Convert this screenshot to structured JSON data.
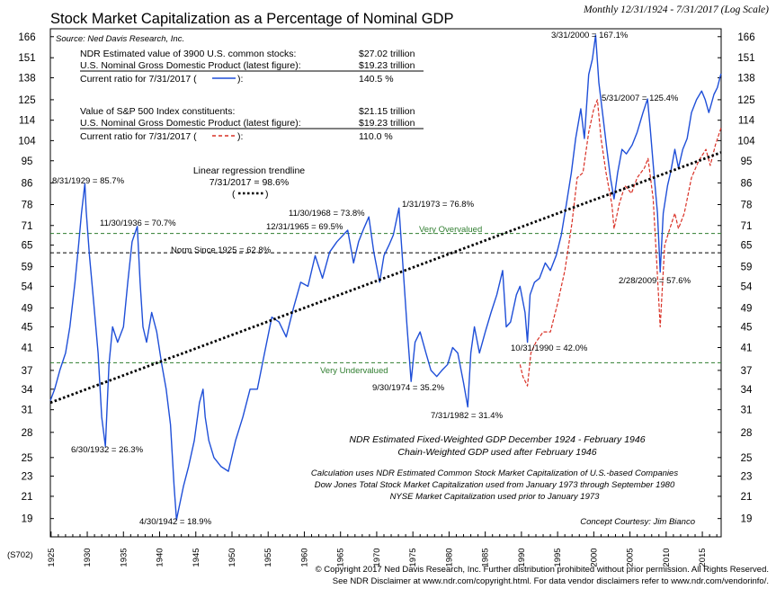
{
  "header": {
    "title": "Stock Market Capitalization as a Percentage of Nominal GDP",
    "subtitle": "Monthly 12/31/1924 - 7/31/2017 (Log Scale)",
    "source": "Source: Ned Davis Research, Inc.",
    "chart_code": "(S702)"
  },
  "info": {
    "ndr_label": "NDR Estimated value of 3900 U.S. common stocks:",
    "ndr_value": "$27.02 trillion",
    "gdp_label_1": "U.S. Nominal Gross Domestic Product (latest figure):",
    "gdp_value_1": "$19.23 trillion",
    "ratio_label_1a": "Current ratio for 7/31/2017 (",
    "ratio_label_1b": "):",
    "ratio_value_1": "140.5 %",
    "sp_label": "Value of S&P 500 Index constituents:",
    "sp_value": "$21.15 trillion",
    "gdp_label_2": "U.S. Nominal Gross Domestic Product (latest figure):",
    "gdp_value_2": "$19.23 trillion",
    "ratio_label_2a": "Current ratio for 7/31/2017 (",
    "ratio_label_2b": "):",
    "ratio_value_2": "110.0 %",
    "trend_line1": "Linear regression trendline",
    "trend_line2": "7/31/2017 = 98.6%",
    "trend_line3a": "(",
    "trend_line3b": ")"
  },
  "notes": {
    "gdp_1": "NDR Estimated Fixed-Weighted GDP December 1924 - February 1946",
    "gdp_2": "Chain-Weighted GDP used after February 1946",
    "calc_1": "Calculation uses NDR Estimated Common Stock Market Capitalization of U.S.-based Companies",
    "calc_2": "Dow Jones Total Stock Market Capitalization used from January 1973 through September 1980",
    "calc_3": "NYSE Market Capitalization used prior to January 1973",
    "courtesy": "Concept Courtesy: Jim Bianco"
  },
  "footer": {
    "line1": "© Copyright 2017 Ned Davis Research, Inc.  Further distribution prohibited without prior permission.  All Rights Reserved.",
    "line2": "See NDR Disclaimer at www.ndr.com/copyright.html.  For data vendor disclaimers refer to www.ndr.com/vendorinfo/."
  },
  "colors": {
    "ndr_series": "#1f4fd8",
    "sp_series": "#d93025",
    "trend": "#000000",
    "zone_lines": "#2f7d2f",
    "norm_line": "#000000"
  },
  "chart_data": {
    "type": "line",
    "y_scale": "log",
    "ylim": [
      17.5,
      172
    ],
    "xlim": [
      1924.9,
      2017.6
    ],
    "y_ticks": [
      19,
      21,
      23,
      25,
      28,
      31,
      34,
      37,
      41,
      45,
      49,
      54,
      59,
      65,
      71,
      78,
      86,
      95,
      104,
      114,
      125,
      138,
      151,
      166
    ],
    "x_ticks": [
      1925,
      1930,
      1935,
      1940,
      1945,
      1950,
      1955,
      1960,
      1965,
      1970,
      1975,
      1980,
      1985,
      1990,
      1995,
      2000,
      2005,
      2010,
      2015
    ],
    "series": [
      {
        "name": "NDR Estimated value of 3900 U.S. common stocks / GDP",
        "style": "solid",
        "x": [
          1924.9,
          1925.5,
          1926.2,
          1927.0,
          1927.6,
          1928.3,
          1928.8,
          1929.2,
          1929.67,
          1929.85,
          1930.3,
          1930.9,
          1931.5,
          1932.0,
          1932.5,
          1933.0,
          1933.5,
          1934.2,
          1935.0,
          1935.6,
          1936.2,
          1936.5,
          1936.92,
          1937.3,
          1937.7,
          1938.2,
          1938.9,
          1939.6,
          1940.3,
          1940.9,
          1941.5,
          1942.0,
          1942.33,
          1942.7,
          1943.3,
          1944.0,
          1944.8,
          1945.5,
          1946.0,
          1946.3,
          1946.8,
          1947.5,
          1948.5,
          1949.5,
          1950.5,
          1951.5,
          1952.5,
          1953.5,
          1954.5,
          1955.5,
          1956.5,
          1957.5,
          1958.5,
          1959.5,
          1960.5,
          1961.5,
          1962.5,
          1963.5,
          1964.5,
          1965.99,
          1966.8,
          1967.5,
          1968.2,
          1968.92,
          1969.6,
          1970.4,
          1971.0,
          1971.7,
          1972.3,
          1973.08,
          1973.6,
          1974.2,
          1974.75,
          1975.3,
          1976.0,
          1976.8,
          1977.5,
          1978.3,
          1979.0,
          1979.8,
          1980.5,
          1981.2,
          1982.0,
          1982.58,
          1983.0,
          1983.5,
          1984.2,
          1985.0,
          1985.8,
          1986.6,
          1987.4,
          1987.9,
          1988.5,
          1989.3,
          1989.8,
          1990.5,
          1990.83,
          1991.2,
          1991.8,
          1992.5,
          1993.3,
          1994.0,
          1994.8,
          1995.5,
          1996.2,
          1996.9,
          1997.5,
          1998.2,
          1998.7,
          1999.3,
          1999.8,
          2000.25,
          2000.7,
          2001.3,
          2001.8,
          2002.3,
          2002.8,
          2003.3,
          2003.9,
          2004.5,
          2005.3,
          2006.0,
          2006.8,
          2007.42,
          2007.8,
          2008.3,
          2008.8,
          2009.17,
          2009.6,
          2010.2,
          2010.6,
          2011.2,
          2011.7,
          2012.3,
          2012.9,
          2013.5,
          2014.2,
          2014.9,
          2015.4,
          2015.9,
          2016.2,
          2016.6,
          2017.08,
          2017.58
        ],
        "values": [
          32.3,
          34.0,
          37.0,
          40.0,
          45.0,
          55.0,
          65.0,
          75.0,
          85.7,
          76.0,
          62.0,
          50.0,
          40.0,
          30.0,
          26.3,
          38.0,
          45.0,
          42.0,
          45.0,
          55.0,
          66.0,
          68.0,
          70.7,
          55.0,
          45.0,
          42.0,
          48.0,
          44.0,
          38.0,
          34.0,
          29.0,
          22.0,
          18.9,
          20.0,
          22.0,
          24.0,
          27.0,
          32.0,
          34.0,
          30.0,
          27.0,
          25.0,
          24.0,
          23.5,
          27.0,
          30.0,
          34.0,
          34.0,
          40.0,
          47.0,
          46.0,
          43.0,
          49.0,
          55.0,
          54.0,
          62.0,
          56.0,
          63.0,
          66.0,
          69.5,
          60.0,
          66.0,
          70.0,
          73.8,
          63.0,
          55.0,
          62.0,
          65.0,
          68.0,
          76.8,
          60.0,
          45.0,
          35.2,
          42.0,
          44.0,
          40.0,
          37.0,
          36.0,
          37.0,
          38.0,
          41.0,
          40.0,
          35.0,
          31.4,
          40.0,
          45.0,
          40.0,
          44.0,
          48.0,
          52.0,
          58.0,
          45.0,
          46.0,
          52.0,
          54.0,
          48.0,
          42.0,
          52.0,
          55.0,
          56.0,
          60.0,
          58.0,
          62.0,
          68.0,
          78.0,
          90.0,
          105.0,
          120.0,
          105.0,
          140.0,
          150.0,
          167.1,
          135.0,
          115.0,
          100.0,
          88.0,
          80.0,
          90.0,
          100.0,
          98.0,
          102.0,
          108.0,
          118.0,
          125.4,
          110.0,
          90.0,
          75.0,
          57.6,
          75.0,
          85.0,
          90.0,
          100.0,
          92.0,
          100.0,
          105.0,
          118.0,
          125.0,
          130.0,
          125.0,
          118.0,
          122.0,
          128.0,
          132.0,
          140.5
        ]
      },
      {
        "name": "Value of S&P 500 Index constituents / GDP",
        "style": "dashed",
        "x": [
          1989.8,
          1990.2,
          1990.83,
          1991.3,
          1992.0,
          1993.0,
          1994.0,
          1995.0,
          1996.0,
          1997.0,
          1997.7,
          1998.5,
          1999.3,
          2000.0,
          2000.5,
          2001.0,
          2001.7,
          2002.5,
          2002.8,
          2003.5,
          2004.3,
          2005.2,
          2006.0,
          2007.0,
          2007.5,
          2008.2,
          2008.7,
          2009.17,
          2009.8,
          2010.5,
          2011.2,
          2011.7,
          2012.5,
          2013.5,
          2014.5,
          2015.5,
          2016.1,
          2016.8,
          2017.58
        ],
        "values": [
          38.0,
          36.0,
          34.5,
          40.0,
          42.0,
          44.0,
          44.0,
          50.0,
          58.0,
          72.0,
          88.0,
          90.0,
          108.0,
          120.0,
          125.0,
          105.0,
          90.0,
          78.0,
          70.0,
          78.0,
          85.0,
          82.0,
          88.0,
          92.0,
          96.0,
          80.0,
          60.0,
          45.0,
          65.0,
          70.0,
          75.0,
          70.0,
          75.0,
          88.0,
          95.0,
          100.0,
          93.0,
          102.0,
          110.0
        ]
      },
      {
        "name": "Linear regression trendline",
        "style": "dotted",
        "x": [
          1924.9,
          2017.58
        ],
        "values": [
          32.0,
          98.6
        ]
      }
    ],
    "reference_lines": [
      {
        "label": "Very Overvalued",
        "value": 68.5
      },
      {
        "label": "Norm Since 1925 = 62.8%",
        "value": 62.8
      },
      {
        "label": "Very Undervalued",
        "value": 38.3
      }
    ],
    "annotations": [
      {
        "text": "8/31/1929 = 85.7%"
      },
      {
        "text": "11/30/1936 = 70.7%"
      },
      {
        "text": "6/30/1932 = 26.3%"
      },
      {
        "text": "4/30/1942 = 18.9%"
      },
      {
        "text": "11/30/1968 = 73.8%"
      },
      {
        "text": "12/31/1965 = 69.5%"
      },
      {
        "text": "1/31/1973 = 76.8%"
      },
      {
        "text": "9/30/1974 = 35.2%"
      },
      {
        "text": "7/31/1982 = 31.4%"
      },
      {
        "text": "10/31/1990 = 42.0%"
      },
      {
        "text": "3/31/2000 = 167.1%"
      },
      {
        "text": "5/31/2007 = 125.4%"
      },
      {
        "text": "2/28/2009 = 57.6%"
      }
    ]
  }
}
